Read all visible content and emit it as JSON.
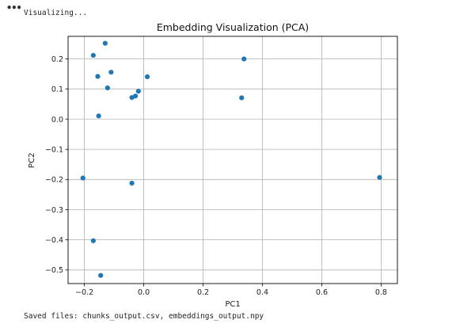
{
  "output": {
    "ellipsis_glyph": "•••",
    "status_text": "Visualizing...",
    "saved_files_text": "Saved files: chunks_output.csv, embeddings_output.npy"
  },
  "chart_data": {
    "type": "scatter",
    "title": "Embedding Visualization (PCA)",
    "xlabel": "PC1",
    "ylabel": "PC2",
    "xlim": [
      -0.255,
      0.855
    ],
    "ylim": [
      -0.545,
      0.275
    ],
    "xticks": [
      -0.2,
      0.0,
      0.2,
      0.4,
      0.6,
      0.8
    ],
    "xtick_labels": [
      "−0.2",
      "0.0",
      "0.2",
      "0.4",
      "0.6",
      "0.8"
    ],
    "yticks": [
      -0.5,
      -0.4,
      -0.3,
      -0.2,
      -0.1,
      0.0,
      0.1,
      0.2
    ],
    "ytick_labels": [
      "−0.5",
      "−0.4",
      "−0.3",
      "−0.2",
      "−0.1",
      "0.0",
      "0.1",
      "0.2"
    ],
    "grid": true,
    "marker_color": "#1f77b4",
    "points": [
      {
        "x": -0.205,
        "y": -0.195
      },
      {
        "x": -0.17,
        "y": 0.212
      },
      {
        "x": -0.17,
        "y": -0.403
      },
      {
        "x": -0.155,
        "y": 0.142
      },
      {
        "x": -0.152,
        "y": 0.011
      },
      {
        "x": -0.145,
        "y": -0.518
      },
      {
        "x": -0.13,
        "y": 0.252
      },
      {
        "x": -0.122,
        "y": 0.104
      },
      {
        "x": -0.11,
        "y": 0.156
      },
      {
        "x": -0.04,
        "y": 0.072
      },
      {
        "x": -0.04,
        "y": -0.212
      },
      {
        "x": -0.028,
        "y": 0.077
      },
      {
        "x": -0.018,
        "y": 0.093
      },
      {
        "x": 0.012,
        "y": 0.141
      },
      {
        "x": 0.33,
        "y": 0.071
      },
      {
        "x": 0.338,
        "y": 0.2
      },
      {
        "x": 0.795,
        "y": -0.193
      }
    ]
  }
}
